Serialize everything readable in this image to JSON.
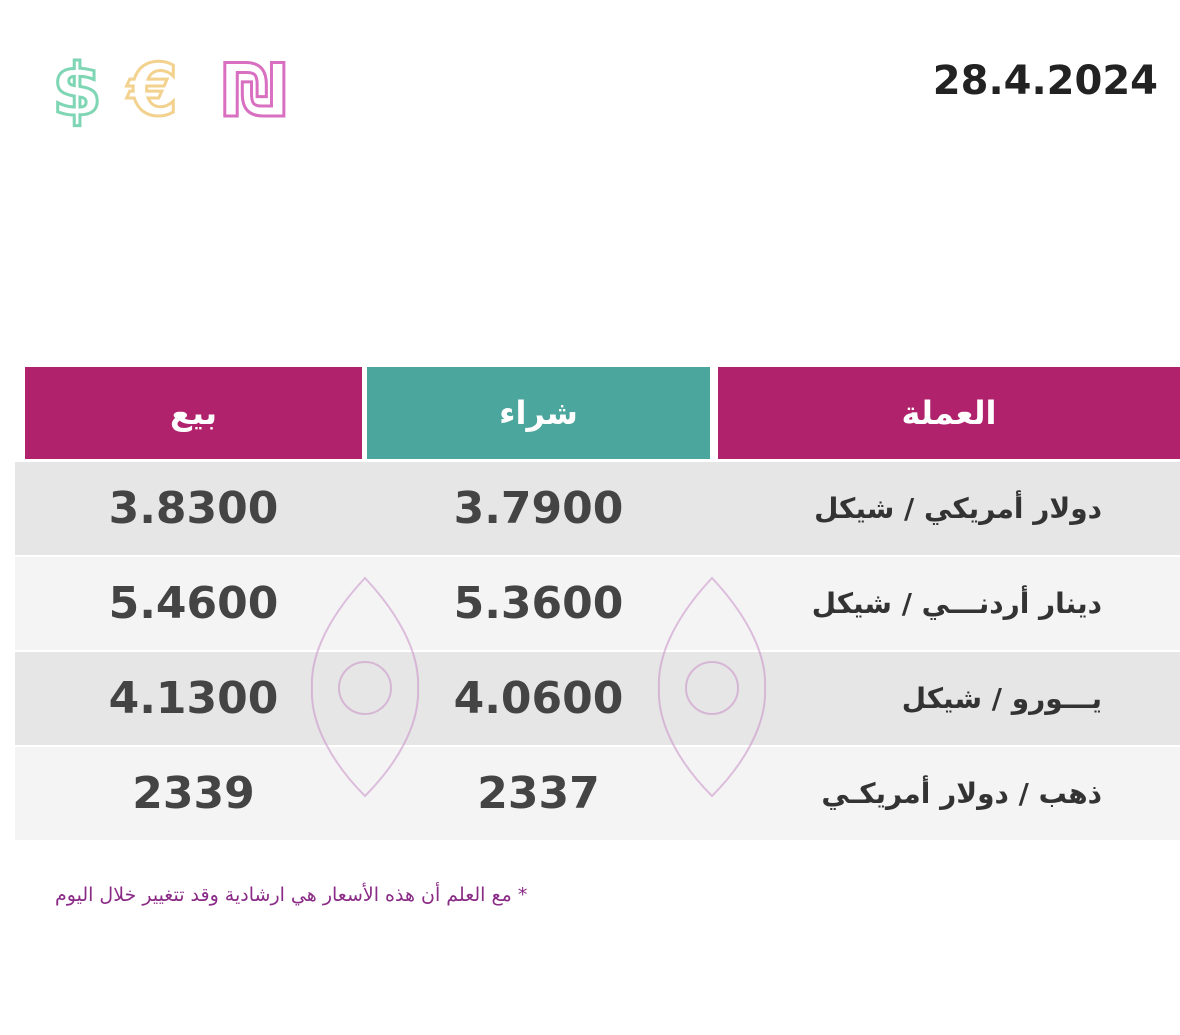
{
  "header": {
    "icons": [
      "$",
      "€",
      "₪"
    ],
    "date": "28.4.2024"
  },
  "table": {
    "headers": [
      "بيع",
      "شراء",
      "العملة"
    ],
    "rows": [
      [
        "3.8300",
        "3.7900",
        "دولار أمريكي / شيكل"
      ],
      [
        "5.4600",
        "5.3600",
        "دينار أردنـــي / شيكل"
      ],
      [
        "4.1300",
        "4.0600",
        "يـــورو / شيكل"
      ],
      [
        "2339",
        "2337",
        "ذهب / دولار أمريكـي"
      ]
    ]
  },
  "footer": {
    "note": "* مع العلم أن هذه الأسعار هي ارشادية وقد تتغيير خلال اليوم"
  }
}
